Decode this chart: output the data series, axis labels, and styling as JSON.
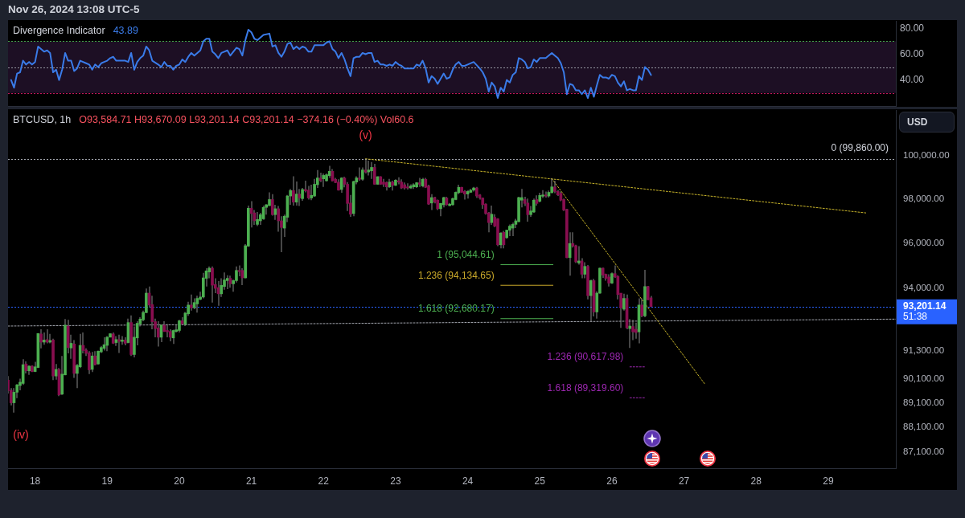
{
  "chart_data": [
    {
      "type": "line",
      "title": "Divergence Indicator",
      "color": "#3a7be8",
      "tick_labels": "y",
      "x": [
        17.667,
        17.708,
        17.75,
        17.792,
        17.833,
        17.875,
        17.917,
        17.958,
        18,
        18.042,
        18.125,
        18.167,
        18.208,
        18.25,
        18.292,
        18.333,
        18.375,
        18.417,
        18.458,
        18.5,
        18.542,
        18.583,
        18.625,
        18.708,
        18.75,
        18.792,
        18.833,
        18.875,
        18.917,
        18.958,
        19,
        19.042,
        19.083,
        19.125,
        19.167,
        19.208,
        19.25,
        19.292,
        19.333,
        19.375,
        19.417,
        19.458,
        19.5,
        19.542,
        19.583,
        19.625,
        19.708,
        19.75,
        19.792,
        19.833,
        19.875,
        19.917,
        19.958,
        20,
        20.042,
        20.083,
        20.125,
        20.167,
        20.208,
        20.25,
        20.292,
        20.333,
        20.375,
        20.417,
        20.458,
        20.5,
        20.542,
        20.583,
        20.625,
        20.667,
        20.708,
        20.75,
        20.792,
        20.833,
        20.875,
        20.917,
        20.958,
        21,
        21.042,
        21.083,
        21.125,
        21.167,
        21.25,
        21.292,
        21.333,
        21.375,
        21.417,
        21.458,
        21.5,
        21.542,
        21.583,
        21.625,
        21.667,
        21.708,
        21.75,
        21.792,
        21.833,
        21.875,
        21.917,
        22,
        22.042,
        22.083,
        22.125,
        22.167,
        22.208,
        22.25,
        22.292,
        22.333,
        22.375,
        22.417,
        22.458,
        22.5,
        22.542,
        22.583,
        22.625,
        22.667,
        22.708,
        22.75,
        22.792,
        22.833,
        22.875,
        22.917,
        22.958,
        23,
        23.042,
        23.083,
        23.125,
        23.208,
        23.25,
        23.292,
        23.333,
        23.375,
        23.417,
        23.458,
        23.5,
        23.542,
        23.583,
        23.625,
        23.667,
        23.708,
        23.75,
        23.792,
        23.833,
        23.875,
        23.917,
        23.958,
        24,
        24.083,
        24.167,
        24.208,
        24.25,
        24.292,
        24.333,
        24.375,
        24.417,
        24.458,
        24.5,
        24.542,
        24.583,
        24.625,
        24.667,
        24.708,
        24.75,
        24.792,
        24.833,
        24.875,
        24.917,
        24.958,
        25,
        25.042,
        25.083,
        25.167,
        25.208,
        25.25,
        25.292,
        25.333,
        25.375,
        25.417,
        25.458,
        25.5,
        25.542,
        25.583,
        25.625,
        25.667,
        25.708,
        25.75,
        25.792,
        25.833,
        25.875,
        25.917,
        25.958,
        26,
        26.042,
        26.083,
        26.125,
        26.167,
        26.208,
        26.25,
        26.292,
        26.333,
        26.375,
        26.417,
        26.458,
        26.5,
        26.542
      ],
      "values": [
        40,
        34,
        45,
        46,
        55,
        52,
        54,
        52,
        54,
        66,
        62,
        63,
        61,
        46,
        48,
        40,
        48,
        61,
        55,
        55,
        47,
        49,
        55,
        53,
        52,
        48,
        52,
        50,
        53,
        54,
        55,
        57,
        58,
        55,
        55,
        55,
        55,
        54,
        61,
        48,
        54,
        57,
        59,
        66,
        63,
        55,
        52,
        50,
        54,
        51,
        51,
        48,
        51,
        52,
        56,
        54,
        58,
        61,
        59,
        61,
        63,
        70,
        72,
        72,
        62,
        60,
        57,
        61,
        62,
        63,
        59,
        62,
        65,
        64,
        59,
        71,
        79,
        77,
        72,
        71,
        73,
        75,
        76,
        66,
        67,
        61,
        58,
        62,
        68,
        69,
        64,
        66,
        64,
        66,
        65,
        62,
        62,
        67,
        67,
        67,
        69,
        70,
        64,
        62,
        57,
        61,
        56,
        49,
        43,
        57,
        58,
        58,
        61,
        60,
        61,
        61,
        54,
        55,
        52,
        52,
        51,
        52,
        51,
        54,
        52,
        51,
        49,
        49,
        49,
        52,
        51,
        55,
        49,
        38,
        43,
        41,
        37,
        41,
        45,
        41,
        42,
        48,
        52,
        54,
        51,
        51,
        52,
        54,
        49,
        46,
        41,
        31,
        38,
        35,
        26,
        34,
        31,
        40,
        38,
        44,
        46,
        57,
        56,
        54,
        49,
        50,
        56,
        54,
        57,
        57,
        57,
        61,
        59,
        57,
        53,
        46,
        29,
        37,
        36,
        32,
        32,
        29,
        32,
        26,
        34,
        27,
        36,
        44,
        42,
        42,
        41,
        44,
        43,
        38,
        35,
        39,
        32,
        33,
        32,
        32,
        43,
        40,
        50,
        48,
        43.89
      ],
      "xlim": [
        17.625,
        29.938
      ],
      "ylim": [
        19.8,
        85.9
      ],
      "yticks": [
        {
          "value": 40,
          "label": "40.00"
        },
        {
          "value": 60,
          "label": "60.00"
        },
        {
          "value": 80,
          "label": "80.00"
        }
      ],
      "bands": [
        {
          "axis": "y",
          "from": 30,
          "to": 70,
          "color": "#1d0f24"
        }
      ],
      "ref_lines": [
        {
          "axis": "y",
          "value": 70,
          "color": "#43a047",
          "line_style": "dotted"
        },
        {
          "axis": "y",
          "value": 50,
          "color": "#9598a1",
          "line_style": "dotted"
        },
        {
          "axis": "y",
          "value": 30,
          "color": "#c2185b",
          "line_style": "dotted"
        }
      ],
      "annotations": [
        "Nov 26, 2024 13:08 UTC-5",
        "43.89"
      ]
    },
    {
      "type": "candlestick",
      "title": "BTCUSD, 1h",
      "subtitle": "O93,584.71 H93,670.09 L93,201.14 C93,201.14 −374.16 (−0.40%) Vol60.6",
      "log": "y",
      "x": [
        17.625,
        17.667,
        17.708,
        17.75,
        17.792,
        17.833,
        17.875,
        17.917,
        17.958,
        18,
        18.042,
        18.083,
        18.125,
        18.167,
        18.208,
        18.25,
        18.292,
        18.333,
        18.375,
        18.417,
        18.458,
        18.5,
        18.542,
        18.583,
        18.625,
        18.667,
        18.708,
        18.75,
        18.792,
        18.833,
        18.875,
        18.917,
        18.958,
        19,
        19.042,
        19.083,
        19.125,
        19.167,
        19.208,
        19.25,
        19.292,
        19.333,
        19.375,
        19.417,
        19.458,
        19.5,
        19.542,
        19.583,
        19.625,
        19.667,
        19.708,
        19.75,
        19.792,
        19.833,
        19.875,
        19.917,
        19.958,
        20,
        20.042,
        20.083,
        20.125,
        20.167,
        20.208,
        20.25,
        20.292,
        20.333,
        20.375,
        20.417,
        20.458,
        20.5,
        20.542,
        20.583,
        20.625,
        20.667,
        20.708,
        20.75,
        20.792,
        20.833,
        20.875,
        20.917,
        20.958,
        21,
        21.042,
        21.083,
        21.125,
        21.167,
        21.208,
        21.25,
        21.292,
        21.333,
        21.375,
        21.417,
        21.458,
        21.5,
        21.542,
        21.583,
        21.625,
        21.667,
        21.708,
        21.75,
        21.792,
        21.833,
        21.875,
        21.917,
        21.958,
        22,
        22.042,
        22.083,
        22.125,
        22.167,
        22.208,
        22.25,
        22.292,
        22.333,
        22.375,
        22.417,
        22.458,
        22.5,
        22.542,
        22.583,
        22.625,
        22.667,
        22.708,
        22.75,
        22.792,
        22.833,
        22.875,
        22.917,
        22.958,
        23,
        23.042,
        23.083,
        23.125,
        23.167,
        23.208,
        23.25,
        23.292,
        23.333,
        23.375,
        23.417,
        23.458,
        23.5,
        23.542,
        23.583,
        23.625,
        23.667,
        23.708,
        23.75,
        23.792,
        23.833,
        23.875,
        23.917,
        23.958,
        24,
        24.042,
        24.083,
        24.125,
        24.167,
        24.208,
        24.25,
        24.292,
        24.333,
        24.375,
        24.417,
        24.458,
        24.5,
        24.542,
        24.583,
        24.625,
        24.667,
        24.708,
        24.75,
        24.792,
        24.833,
        24.875,
        24.917,
        24.958,
        25,
        25.042,
        25.083,
        25.125,
        25.167,
        25.208,
        25.25,
        25.292,
        25.333,
        25.375,
        25.417,
        25.458,
        25.5,
        25.542,
        25.583,
        25.625,
        25.667,
        25.708,
        25.75,
        25.792,
        25.833,
        25.875,
        25.917,
        25.958,
        26,
        26.042,
        26.083,
        26.125,
        26.167,
        26.208,
        26.25,
        26.292,
        26.333,
        26.375,
        26.417,
        26.458,
        26.5,
        26.542
      ],
      "ohlc": [
        [
          90060,
          90230,
          89500,
          89620
        ],
        [
          89630,
          89720,
          89000,
          89110
        ],
        [
          89110,
          89720,
          88700,
          89550
        ],
        [
          89550,
          89890,
          89300,
          89860
        ],
        [
          89830,
          90120,
          89630,
          89970
        ],
        [
          89920,
          90940,
          89860,
          90710
        ],
        [
          90740,
          90850,
          90340,
          90450
        ],
        [
          90450,
          90680,
          90280,
          90650
        ],
        [
          90650,
          90680,
          90400,
          90420
        ],
        [
          90420,
          90830,
          90400,
          90620
        ],
        [
          90590,
          92040,
          90570,
          92040
        ],
        [
          92020,
          92220,
          91400,
          91670
        ],
        [
          91670,
          92080,
          91560,
          91760
        ],
        [
          91780,
          92220,
          91620,
          91670
        ],
        [
          91670,
          92020,
          91620,
          91740
        ],
        [
          91760,
          91820,
          90060,
          90230
        ],
        [
          90230,
          90740,
          90080,
          90510
        ],
        [
          90510,
          90570,
          89390,
          89440
        ],
        [
          89470,
          91080,
          89440,
          90310
        ],
        [
          90280,
          92660,
          90260,
          92400
        ],
        [
          92360,
          92630,
          91190,
          91440
        ],
        [
          91420,
          91990,
          90960,
          91620
        ],
        [
          91590,
          91760,
          90150,
          90340
        ],
        [
          90340,
          90740,
          89720,
          90680
        ],
        [
          90620,
          92020,
          90570,
          91530
        ],
        [
          91530,
          92080,
          91190,
          91310
        ],
        [
          91330,
          91400,
          91080,
          91190
        ],
        [
          91210,
          91280,
          90310,
          90490
        ],
        [
          90510,
          91250,
          90400,
          91080
        ],
        [
          91080,
          91280,
          90680,
          90710
        ],
        [
          90740,
          91310,
          90710,
          91280
        ],
        [
          91250,
          91510,
          91210,
          91440
        ],
        [
          91400,
          91880,
          91310,
          91560
        ],
        [
          91530,
          91930,
          91280,
          91880
        ],
        [
          91880,
          92050,
          91880,
          92030
        ],
        [
          92020,
          92080,
          91590,
          91620
        ],
        [
          91650,
          91930,
          91510,
          91780
        ],
        [
          91780,
          91990,
          91210,
          91700
        ],
        [
          91700,
          91930,
          91560,
          91760
        ],
        [
          91760,
          91880,
          91530,
          91620
        ],
        [
          91650,
          92680,
          91620,
          92510
        ],
        [
          92510,
          92820,
          91080,
          91140
        ],
        [
          91140,
          92340,
          91020,
          91880
        ],
        [
          91850,
          92570,
          91530,
          92480
        ],
        [
          92450,
          92740,
          92340,
          92660
        ],
        [
          92630,
          93030,
          92570,
          92950
        ],
        [
          92940,
          93990,
          92920,
          93790
        ],
        [
          93790,
          94080,
          93170,
          93270
        ],
        [
          93290,
          93680,
          92220,
          92550
        ],
        [
          92550,
          92680,
          91880,
          92250
        ],
        [
          92280,
          92570,
          91480,
          91880
        ],
        [
          91880,
          92430,
          91670,
          92400
        ],
        [
          92400,
          92570,
          92110,
          92130
        ],
        [
          92170,
          92450,
          91880,
          92110
        ],
        [
          92130,
          92220,
          91700,
          91880
        ],
        [
          91850,
          92200,
          91590,
          92170
        ],
        [
          92130,
          92400,
          92080,
          92200
        ],
        [
          92170,
          92630,
          92080,
          92590
        ],
        [
          92590,
          92740,
          92400,
          92450
        ],
        [
          92430,
          92970,
          92360,
          92920
        ],
        [
          92890,
          93410,
          92800,
          93270
        ],
        [
          93270,
          93730,
          93030,
          93150
        ],
        [
          93150,
          93560,
          93090,
          93380
        ],
        [
          93320,
          93680,
          92940,
          93560
        ],
        [
          93520,
          93850,
          93480,
          93620
        ],
        [
          93620,
          94680,
          93560,
          94460
        ],
        [
          94440,
          94890,
          94080,
          94770
        ],
        [
          94720,
          94970,
          94440,
          94890
        ],
        [
          94890,
          94970,
          93380,
          94140
        ],
        [
          94170,
          94440,
          93790,
          94000
        ],
        [
          94030,
          94320,
          93240,
          93760
        ],
        [
          93760,
          94440,
          93620,
          94130
        ],
        [
          94080,
          94700,
          93940,
          94370
        ],
        [
          94340,
          94580,
          93970,
          94440
        ],
        [
          94440,
          94560,
          94030,
          94200
        ],
        [
          94200,
          94380,
          93850,
          94340
        ],
        [
          94340,
          94970,
          94260,
          94790
        ],
        [
          94790,
          95010,
          94530,
          94740
        ],
        [
          94790,
          94890,
          94140,
          94460
        ],
        [
          94460,
          95960,
          94440,
          95890
        ],
        [
          95870,
          97700,
          95840,
          97580
        ],
        [
          97580,
          97900,
          96710,
          97340
        ],
        [
          97370,
          97500,
          96830,
          97010
        ],
        [
          96850,
          97410,
          96770,
          97070
        ],
        [
          97010,
          97370,
          96830,
          97290
        ],
        [
          97100,
          97700,
          97050,
          97620
        ],
        [
          97620,
          97770,
          97290,
          97740
        ],
        [
          97700,
          98310,
          97680,
          97980
        ],
        [
          97980,
          98230,
          97250,
          97290
        ],
        [
          97290,
          97740,
          97050,
          97560
        ],
        [
          97560,
          97680,
          96520,
          97010
        ],
        [
          97010,
          97220,
          95600,
          96710
        ],
        [
          96680,
          97290,
          96280,
          97220
        ],
        [
          97170,
          98190,
          96950,
          98140
        ],
        [
          98140,
          98470,
          97740,
          98390
        ],
        [
          98390,
          99050,
          97700,
          97860
        ],
        [
          97860,
          98810,
          97700,
          98230
        ],
        [
          98230,
          98470,
          97680,
          98050
        ],
        [
          98020,
          98510,
          97920,
          98440
        ],
        [
          98440,
          98840,
          98310,
          98380
        ],
        [
          98410,
          98600,
          97980,
          98050
        ],
        [
          98050,
          98660,
          97950,
          98170
        ],
        [
          98140,
          98930,
          98110,
          98680
        ],
        [
          98660,
          99340,
          98510,
          98970
        ],
        [
          98970,
          99220,
          98780,
          98840
        ],
        [
          98930,
          99180,
          98560,
          99090
        ],
        [
          98840,
          99180,
          98810,
          99120
        ],
        [
          99080,
          99530,
          98970,
          99280
        ],
        [
          99280,
          99380,
          98810,
          98840
        ],
        [
          98910,
          98970,
          98730,
          98760
        ],
        [
          98780,
          98910,
          98390,
          98410
        ],
        [
          98440,
          99000,
          98290,
          98970
        ],
        [
          98970,
          99030,
          98540,
          98680
        ],
        [
          98680,
          98780,
          97460,
          97800
        ],
        [
          97820,
          98190,
          97190,
          97310
        ],
        [
          97340,
          98840,
          97220,
          98810
        ],
        [
          98780,
          99050,
          98680,
          98970
        ],
        [
          98970,
          99460,
          98840,
          98910
        ],
        [
          98910,
          99460,
          98840,
          99340
        ],
        [
          99340,
          99860,
          99180,
          99240
        ],
        [
          99250,
          99780,
          99090,
          99340
        ],
        [
          99300,
          99710,
          98930,
          99460
        ],
        [
          99460,
          99630,
          98660,
          98680
        ],
        [
          98680,
          99050,
          98660,
          99030
        ],
        [
          99030,
          99050,
          98660,
          98680
        ],
        [
          98780,
          98930,
          98560,
          98680
        ],
        [
          98760,
          98810,
          98390,
          98560
        ],
        [
          98560,
          98930,
          98510,
          98780
        ],
        [
          98780,
          98840,
          98390,
          98630
        ],
        [
          98630,
          98910,
          98600,
          98870
        ],
        [
          98840,
          99000,
          98680,
          98780
        ],
        [
          98780,
          98910,
          98470,
          98510
        ],
        [
          98660,
          98760,
          98440,
          98510
        ],
        [
          98560,
          98720,
          98440,
          98510
        ],
        [
          98510,
          98680,
          98470,
          98600
        ],
        [
          98560,
          98720,
          98470,
          98660
        ],
        [
          98560,
          98780,
          98510,
          98750
        ],
        [
          98750,
          98970,
          98560,
          98680
        ],
        [
          98600,
          98970,
          98540,
          98910
        ],
        [
          98910,
          98970,
          98510,
          98540
        ],
        [
          98600,
          98660,
          97740,
          97770
        ],
        [
          97820,
          98230,
          97500,
          98070
        ],
        [
          98070,
          98110,
          97800,
          97860
        ],
        [
          97950,
          97980,
          97500,
          97560
        ],
        [
          97560,
          97820,
          97220,
          97800
        ],
        [
          97740,
          98110,
          97620,
          98070
        ],
        [
          98050,
          98110,
          97700,
          97740
        ],
        [
          97700,
          97820,
          97680,
          97770
        ],
        [
          97740,
          98070,
          97700,
          98020
        ],
        [
          97980,
          98350,
          97950,
          98310
        ],
        [
          98290,
          98660,
          98230,
          98540
        ],
        [
          98540,
          98560,
          98290,
          98310
        ],
        [
          98350,
          98410,
          97980,
          98230
        ],
        [
          98230,
          98410,
          98020,
          98350
        ],
        [
          98310,
          98470,
          98290,
          98410
        ],
        [
          98410,
          98560,
          98350,
          98510
        ],
        [
          98510,
          98560,
          98050,
          98140
        ],
        [
          98190,
          98230,
          97980,
          98050
        ],
        [
          98050,
          98070,
          97560,
          97740
        ],
        [
          97770,
          97800,
          97290,
          97340
        ],
        [
          97370,
          97410,
          96490,
          96930
        ],
        [
          96930,
          97700,
          96830,
          97310
        ],
        [
          97170,
          97310,
          96730,
          96770
        ],
        [
          97100,
          97130,
          95870,
          95930
        ],
        [
          95930,
          96490,
          95770,
          96460
        ],
        [
          96490,
          96560,
          95770,
          95930
        ],
        [
          96250,
          96610,
          96200,
          96590
        ],
        [
          96590,
          96850,
          96320,
          96770
        ],
        [
          96680,
          96930,
          96320,
          96850
        ],
        [
          96850,
          97100,
          96680,
          97010
        ],
        [
          96970,
          98110,
          96950,
          98070
        ],
        [
          97950,
          98470,
          97620,
          98070
        ],
        [
          97980,
          98110,
          97680,
          97800
        ],
        [
          97820,
          98020,
          96970,
          97290
        ],
        [
          97290,
          97680,
          97190,
          97460
        ],
        [
          97410,
          98020,
          97370,
          97950
        ],
        [
          97980,
          98170,
          97700,
          97800
        ],
        [
          97900,
          98290,
          97850,
          98170
        ],
        [
          98130,
          98410,
          98050,
          98190
        ],
        [
          98190,
          98350,
          98070,
          98140
        ],
        [
          98140,
          98390,
          98070,
          98310
        ],
        [
          98290,
          98940,
          98270,
          98560
        ],
        [
          98560,
          98840,
          98270,
          98350
        ],
        [
          98350,
          98410,
          98140,
          98190
        ],
        [
          98270,
          98350,
          97900,
          97950
        ],
        [
          97980,
          98020,
          97460,
          97500
        ],
        [
          97530,
          97560,
          95330,
          95360
        ],
        [
          95360,
          96490,
          94560,
          95990
        ],
        [
          95990,
          96490,
          95810,
          95870
        ],
        [
          95890,
          95930,
          95120,
          95170
        ],
        [
          95120,
          95870,
          95050,
          95210
        ],
        [
          95210,
          95330,
          94440,
          94620
        ],
        [
          94620,
          95150,
          94440,
          94970
        ],
        [
          94970,
          95030,
          93520,
          93680
        ],
        [
          93680,
          94380,
          92550,
          94340
        ],
        [
          94340,
          94420,
          92780,
          92970
        ],
        [
          92970,
          93870,
          92680,
          93790
        ],
        [
          93790,
          94910,
          93760,
          94890
        ],
        [
          94890,
          94910,
          94460,
          94580
        ],
        [
          94620,
          94650,
          94340,
          94440
        ],
        [
          94500,
          94620,
          94080,
          94230
        ],
        [
          94230,
          94700,
          94200,
          94650
        ],
        [
          94650,
          95010,
          94460,
          94500
        ],
        [
          94530,
          94580,
          93520,
          93730
        ],
        [
          93790,
          93790,
          92280,
          93150
        ],
        [
          93090,
          93760,
          93030,
          93560
        ],
        [
          93560,
          93730,
          92220,
          92280
        ],
        [
          92250,
          92660,
          91420,
          92360
        ],
        [
          92340,
          92630,
          91760,
          92110
        ],
        [
          92220,
          92510,
          91820,
          92080
        ],
        [
          92110,
          93560,
          91620,
          93270
        ],
        [
          93270,
          93560,
          92740,
          92800
        ],
        [
          92800,
          94820,
          92740,
          94080
        ],
        [
          94080,
          94110,
          93480,
          93500
        ],
        [
          93584.71,
          93670.09,
          93201.14,
          93201.14
        ]
      ],
      "colors": [
        "#880e4f",
        "#880e4f",
        "#4caf50",
        "#4caf50",
        "#4caf50",
        "#4caf50",
        "#880e4f",
        "#4caf50",
        "#880e4f",
        "#4caf50",
        "#4caf50",
        "#880e4f",
        "#4caf50",
        "#880e4f",
        "#4caf50",
        "#880e4f",
        "#4caf50",
        "#880e4f",
        "#4caf50",
        "#4caf50",
        "#880e4f",
        "#4caf50",
        "#880e4f",
        "#4caf50",
        "#4caf50",
        "#880e4f",
        "#880e4f",
        "#880e4f",
        "#4caf50",
        "#880e4f",
        "#4caf50",
        "#4caf50",
        "#4caf50",
        "#4caf50",
        "#4caf50",
        "#880e4f",
        "#4caf50",
        "#880e4f",
        "#4caf50",
        "#880e4f",
        "#4caf50",
        "#880e4f",
        "#4caf50",
        "#4caf50",
        "#4caf50",
        "#4caf50",
        "#4caf50",
        "#880e4f",
        "#880e4f",
        "#880e4f",
        "#880e4f",
        "#4caf50",
        "#880e4f",
        "#880e4f",
        "#880e4f",
        "#4caf50",
        "#4caf50",
        "#4caf50",
        "#880e4f",
        "#4caf50",
        "#4caf50",
        "#880e4f",
        "#4caf50",
        "#4caf50",
        "#4caf50",
        "#4caf50",
        "#4caf50",
        "#4caf50",
        "#880e4f",
        "#880e4f",
        "#880e4f",
        "#4caf50",
        "#4caf50",
        "#4caf50",
        "#880e4f",
        "#4caf50",
        "#4caf50",
        "#880e4f",
        "#880e4f",
        "#4caf50",
        "#4caf50",
        "#880e4f",
        "#880e4f",
        "#4caf50",
        "#4caf50",
        "#4caf50",
        "#4caf50",
        "#4caf50",
        "#880e4f",
        "#4caf50",
        "#880e4f",
        "#880e4f",
        "#4caf50",
        "#4caf50",
        "#4caf50",
        "#880e4f",
        "#4caf50",
        "#880e4f",
        "#4caf50",
        "#880e4f",
        "#880e4f",
        "#4caf50",
        "#4caf50",
        "#4caf50",
        "#880e4f",
        "#4caf50",
        "#4caf50",
        "#4caf50",
        "#880e4f",
        "#880e4f",
        "#880e4f",
        "#4caf50",
        "#880e4f",
        "#880e4f",
        "#880e4f",
        "#4caf50",
        "#4caf50",
        "#880e4f",
        "#4caf50",
        "#880e4f",
        "#4caf50",
        "#4caf50",
        "#880e4f",
        "#4caf50",
        "#880e4f",
        "#880e4f",
        "#880e4f",
        "#4caf50",
        "#880e4f",
        "#4caf50",
        "#880e4f",
        "#880e4f",
        "#880e4f",
        "#880e4f",
        "#4caf50",
        "#4caf50",
        "#4caf50",
        "#880e4f",
        "#4caf50",
        "#880e4f",
        "#880e4f",
        "#4caf50",
        "#880e4f",
        "#880e4f",
        "#4caf50",
        "#4caf50",
        "#880e4f",
        "#4caf50",
        "#4caf50",
        "#4caf50",
        "#4caf50",
        "#880e4f",
        "#880e4f",
        "#4caf50",
        "#4caf50",
        "#4caf50",
        "#880e4f",
        "#880e4f",
        "#880e4f",
        "#880e4f",
        "#880e4f",
        "#4caf50",
        "#880e4f",
        "#880e4f",
        "#4caf50",
        "#880e4f",
        "#4caf50",
        "#4caf50",
        "#4caf50",
        "#4caf50",
        "#4caf50",
        "#4caf50",
        "#880e4f",
        "#880e4f",
        "#4caf50",
        "#4caf50",
        "#880e4f",
        "#4caf50",
        "#4caf50",
        "#880e4f",
        "#4caf50",
        "#4caf50",
        "#880e4f",
        "#880e4f",
        "#880e4f",
        "#880e4f",
        "#880e4f",
        "#4caf50",
        "#880e4f",
        "#880e4f",
        "#4caf50",
        "#880e4f",
        "#4caf50",
        "#880e4f",
        "#4caf50",
        "#880e4f",
        "#4caf50",
        "#4caf50",
        "#880e4f",
        "#880e4f",
        "#880e4f",
        "#4caf50",
        "#880e4f",
        "#880e4f",
        "#880e4f",
        "#4caf50",
        "#880e4f",
        "#4caf50",
        "#880e4f",
        "#880e4f",
        "#4caf50",
        "#880e4f",
        "#4caf50",
        "#880e4f",
        "#880e4f"
      ],
      "series": [
        {
          "type": "line",
          "x": [
            22.583,
            29.521
          ],
          "values": [
            99860,
            97370
          ],
          "color": "#c9b52a",
          "line_style": "dotted"
        },
        {
          "type": "line",
          "x": [
            25.167,
            27.292
          ],
          "values": [
            98940,
            89880
          ],
          "color": "#c9b52a",
          "line_style": "dotted"
        },
        {
          "type": "line",
          "x": [
            17.625,
            29.938
          ],
          "values": [
            92360,
            92660
          ],
          "color": "#a3a6af",
          "line_style": "dotted"
        },
        {
          "type": "line",
          "name": "1 (95,044.61)",
          "x": [
            24.458,
            25.183
          ],
          "values": [
            95044.61,
            95044.61
          ],
          "color": "#4caf50"
        },
        {
          "type": "line",
          "name": "1.236 (94,134.65)",
          "x": [
            24.458,
            25.183
          ],
          "values": [
            94134.65,
            94134.65
          ],
          "color": "#c9a82a"
        },
        {
          "type": "line",
          "name": "1.618 (92,680.17)",
          "x": [
            24.458,
            25.183
          ],
          "values": [
            92680.17,
            92680.17
          ],
          "color": "#4caf50"
        },
        {
          "type": "line",
          "name": "1.236 (90,617.98)",
          "x": [
            26.25,
            26.463
          ],
          "values": [
            90617.98,
            90617.98
          ],
          "color": "#9c27b0",
          "line_style": "dotted"
        },
        {
          "type": "line",
          "name": "1.618 (89,319.60)",
          "x": [
            26.25,
            26.463
          ],
          "values": [
            89319.6,
            89319.6
          ],
          "color": "#9c27b0",
          "line_style": "dotted"
        }
      ],
      "xlim": [
        17.625,
        29.938
      ],
      "xticks": [
        18,
        19,
        20,
        21,
        22,
        23,
        24,
        25,
        26,
        27,
        28,
        29
      ],
      "ylim": [
        86430,
        102160
      ],
      "yticks": [
        {
          "value": 87100,
          "label": "87,100.00"
        },
        {
          "value": 88100,
          "label": "88,100.00"
        },
        {
          "value": 89100,
          "label": "89,100.00"
        },
        {
          "value": 90100,
          "label": "90,100.00"
        },
        {
          "value": 91300,
          "label": "91,300.00"
        },
        {
          "value": 93201.14,
          "label": "93,201.14"
        },
        {
          "value": 94000,
          "label": "94,000.00"
        },
        {
          "value": 96000,
          "label": "96,000.00"
        },
        {
          "value": 98000,
          "label": "98,000.00"
        },
        {
          "value": 100000,
          "label": "100,000.00"
        }
      ],
      "ref_lines": [
        {
          "axis": "y",
          "value": 99860,
          "label": "0 (99,860.00)",
          "color": "#a3a6af",
          "line_style": "dotted"
        },
        {
          "axis": "y",
          "value": 93201.14,
          "color": "#2962ff",
          "line_style": "dotted"
        }
      ],
      "annotations": [
        "(v)",
        "(iv)",
        "USD",
        "51:38"
      ]
    }
  ]
}
